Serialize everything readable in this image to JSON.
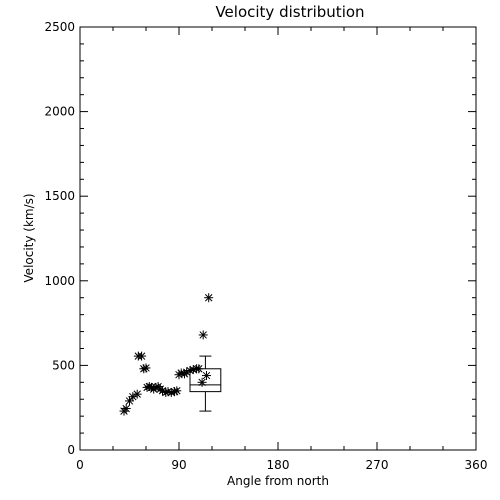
{
  "chart_data": {
    "type": "scatter",
    "title": "Velocity distribution",
    "xlabel": "Angle from north",
    "ylabel": "Velocity (km/s)",
    "xlim": [
      0,
      360
    ],
    "ylim": [
      0,
      2500
    ],
    "xticks": [
      0,
      90,
      180,
      270,
      360
    ],
    "xtick_labels": [
      "0",
      "90",
      "180",
      "270",
      "360"
    ],
    "yticks": [
      0,
      500,
      1000,
      1500,
      2000,
      2500
    ],
    "ytick_labels": [
      "0",
      "500",
      "1000",
      "1500",
      "2000",
      "2500"
    ],
    "grid": false,
    "legend": "none",
    "marker": "asterisk",
    "points": [
      {
        "x": 40,
        "y": 230
      },
      {
        "x": 42,
        "y": 245
      },
      {
        "x": 45,
        "y": 290
      },
      {
        "x": 48,
        "y": 315
      },
      {
        "x": 52,
        "y": 330
      },
      {
        "x": 53,
        "y": 555
      },
      {
        "x": 56,
        "y": 555
      },
      {
        "x": 58,
        "y": 480
      },
      {
        "x": 60,
        "y": 485
      },
      {
        "x": 61,
        "y": 370
      },
      {
        "x": 63,
        "y": 375
      },
      {
        "x": 65,
        "y": 370
      },
      {
        "x": 67,
        "y": 360
      },
      {
        "x": 69,
        "y": 370
      },
      {
        "x": 71,
        "y": 375
      },
      {
        "x": 73,
        "y": 360
      },
      {
        "x": 75,
        "y": 350
      },
      {
        "x": 78,
        "y": 340
      },
      {
        "x": 80,
        "y": 345
      },
      {
        "x": 83,
        "y": 340
      },
      {
        "x": 86,
        "y": 345
      },
      {
        "x": 88,
        "y": 350
      },
      {
        "x": 90,
        "y": 445
      },
      {
        "x": 92,
        "y": 455
      },
      {
        "x": 95,
        "y": 450
      },
      {
        "x": 97,
        "y": 460
      },
      {
        "x": 100,
        "y": 470
      },
      {
        "x": 103,
        "y": 475
      },
      {
        "x": 106,
        "y": 480
      },
      {
        "x": 108,
        "y": 480
      },
      {
        "x": 111,
        "y": 400
      },
      {
        "x": 112,
        "y": 680
      },
      {
        "x": 115,
        "y": 440
      },
      {
        "x": 117,
        "y": 900
      }
    ],
    "boxplot": {
      "x_left": 100,
      "x_right": 128,
      "whisker_low": 230,
      "q1": 345,
      "median": 385,
      "q3": 480,
      "whisker_high": 555
    }
  }
}
